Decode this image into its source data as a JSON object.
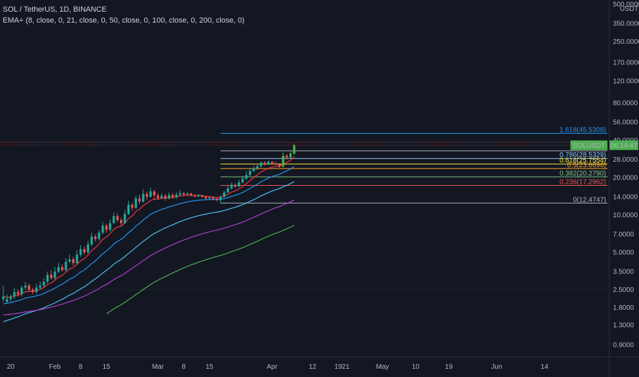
{
  "header": {
    "title": "SOL / TetherUS, 1D, BINANCE",
    "indicator": "EMA+ (8, close, 0, 21, close, 0, 50, close, 0, 100, close, 0, 200, close, 0)"
  },
  "colors": {
    "background": "#131722",
    "up": "#26a69a",
    "up_bright": "#4caf50",
    "down": "#ef5350",
    "ema8": "#f23645",
    "ema21": "#2196f3",
    "ema50": "#4fc3f7",
    "ema100": "#b040d0",
    "ema200": "#4caf50",
    "fib_1618": "#2196f3",
    "fib_1": "#b2b5be",
    "fib_0786": "#90caf9",
    "fib_0618": "#ffeb3b",
    "fib_05": "#ffa726",
    "fib_0382": "#81c784",
    "fib_0236": "#ef5350",
    "fib_0": "#b2b5be"
  },
  "chart_data": {
    "type": "candlestick",
    "scale": "log",
    "y_ticks": [
      "500.0000",
      "350.0000",
      "250.0000",
      "170.0000",
      "120.0000",
      "80.0000",
      "56.0000",
      "40.0000",
      "28.0000",
      "20.0000",
      "14.0000",
      "10.0000",
      "7.0000",
      "5.0000",
      "3.5000",
      "2.5000",
      "1.8000",
      "1.3000",
      "0.9000"
    ],
    "y_tick_values": [
      500,
      350,
      250,
      170,
      120,
      80,
      56,
      40,
      28,
      20,
      14,
      10,
      7,
      5,
      3.5,
      2.5,
      1.8,
      1.3,
      0.9
    ],
    "y_unit": "USDT",
    "x_ticks": [
      "20",
      "Feb",
      "8",
      "15",
      "Mar",
      "8",
      "15",
      "Apr",
      "12",
      "19",
      "21",
      "May",
      "10",
      "19",
      "Jun",
      "14"
    ],
    "x_tick_days": [
      -12,
      0,
      7,
      14,
      28,
      35,
      42,
      59,
      70,
      77,
      79,
      89,
      98,
      107,
      120,
      133
    ],
    "current_price": {
      "symbol": "SOLUSDT",
      "time": "06:14:47",
      "value": 36.5
    },
    "fib_levels": [
      {
        "ratio": 1.618,
        "value": 45.5308,
        "label": "1.618(45.5308)",
        "color_key": "fib_1618"
      },
      {
        "ratio": 1,
        "value": 32.9,
        "label": "1",
        "color_key": "fib_1"
      },
      {
        "ratio": 0.786,
        "value": 28.5329,
        "label": "0.786(28.5329)",
        "color_key": "fib_0786"
      },
      {
        "ratio": 0.618,
        "value": 25.7554,
        "label": "0.618(25.7554)",
        "color_key": "fib_0618"
      },
      {
        "ratio": 0.5,
        "value": 23.6696,
        "label": "0.5(23.6696)",
        "color_key": "fib_05"
      },
      {
        "ratio": 0.382,
        "value": 20.279,
        "label": "0.382(20.2790)",
        "color_key": "fib_0382"
      },
      {
        "ratio": 0.236,
        "value": 17.2962,
        "label": "0.236(17.2962)",
        "color_key": "fib_0236"
      },
      {
        "ratio": 0,
        "value": 12.4747,
        "label": "0(12.4747)",
        "color_key": "fib_0"
      }
    ],
    "fib_start_day": 45,
    "candles": [
      [
        2.1,
        2.2,
        2.7,
        2.0
      ],
      [
        2.0,
        2.1,
        2.3,
        1.95
      ],
      [
        2.1,
        2.2,
        2.3,
        2.0
      ],
      [
        2.2,
        2.4,
        2.6,
        2.1
      ],
      [
        2.4,
        2.3,
        2.5,
        2.2
      ],
      [
        2.3,
        2.6,
        2.7,
        2.2
      ],
      [
        2.6,
        2.7,
        2.9,
        2.5
      ],
      [
        2.7,
        2.5,
        2.8,
        2.4
      ],
      [
        2.5,
        2.4,
        2.6,
        2.3
      ],
      [
        2.4,
        2.6,
        2.8,
        2.3
      ],
      [
        2.6,
        2.7,
        2.9,
        2.5
      ],
      [
        2.7,
        2.9,
        3.1,
        2.6
      ],
      [
        2.9,
        3.3,
        3.5,
        2.8
      ],
      [
        3.3,
        3.1,
        3.6,
        3.0
      ],
      [
        3.1,
        3.5,
        3.8,
        3.0
      ],
      [
        3.5,
        3.8,
        4.1,
        3.4
      ],
      [
        3.8,
        3.6,
        4.0,
        3.5
      ],
      [
        3.6,
        4.2,
        4.5,
        3.5
      ],
      [
        4.2,
        4.4,
        4.8,
        4.1
      ],
      [
        4.4,
        4.1,
        4.6,
        3.9
      ],
      [
        4.1,
        4.8,
        5.2,
        4.0
      ],
      [
        4.8,
        5.3,
        5.7,
        4.6
      ],
      [
        5.3,
        5.0,
        5.6,
        4.8
      ],
      [
        5.0,
        5.8,
        6.2,
        4.9
      ],
      [
        5.8,
        6.7,
        7.2,
        5.6
      ],
      [
        6.7,
        6.4,
        7.0,
        6.1
      ],
      [
        6.4,
        7.2,
        7.6,
        6.2
      ],
      [
        7.2,
        8.2,
        8.8,
        7.0
      ],
      [
        8.2,
        7.6,
        8.5,
        7.2
      ],
      [
        7.6,
        8.6,
        9.2,
        7.4
      ],
      [
        8.6,
        9.8,
        10.5,
        8.5
      ],
      [
        9.8,
        9.1,
        10.3,
        8.8
      ],
      [
        9.1,
        8.6,
        9.5,
        8.2
      ],
      [
        8.6,
        10.2,
        11.0,
        8.5
      ],
      [
        10.2,
        12.1,
        13.0,
        10.0
      ],
      [
        12.1,
        11.4,
        12.6,
        10.8
      ],
      [
        11.4,
        13.6,
        14.3,
        11.2
      ],
      [
        13.6,
        12.8,
        14.6,
        12.2
      ],
      [
        12.8,
        14.8,
        16.2,
        12.6
      ],
      [
        14.8,
        14.0,
        15.4,
        13.2
      ],
      [
        14.0,
        15.5,
        16.5,
        13.8
      ],
      [
        15.5,
        14.4,
        16.0,
        13.2
      ],
      [
        14.4,
        13.7,
        15.0,
        13.2
      ],
      [
        13.7,
        14.3,
        15.0,
        13.4
      ],
      [
        14.3,
        13.6,
        14.8,
        13.0
      ],
      [
        13.6,
        14.5,
        15.2,
        13.3
      ],
      [
        14.5,
        13.9,
        15.1,
        13.5
      ],
      [
        13.9,
        14.6,
        15.3,
        13.6
      ],
      [
        14.6,
        15.0,
        15.8,
        14.2
      ],
      [
        15.0,
        14.6,
        15.4,
        14.2
      ],
      [
        14.6,
        14.9,
        15.3,
        14.3
      ],
      [
        14.9,
        14.4,
        15.1,
        14.1
      ],
      [
        14.4,
        14.1,
        14.7,
        13.9
      ],
      [
        14.1,
        14.4,
        14.8,
        13.9
      ],
      [
        14.4,
        14.0,
        14.6,
        13.7
      ],
      [
        14.0,
        13.6,
        14.2,
        13.3
      ],
      [
        13.6,
        13.9,
        14.2,
        13.4
      ],
      [
        13.9,
        13.5,
        14.0,
        13.1
      ],
      [
        13.5,
        13.2,
        13.7,
        12.9
      ],
      [
        13.2,
        14.0,
        14.5,
        12.5
      ],
      [
        14.0,
        15.2,
        15.7,
        13.8
      ],
      [
        15.2,
        16.4,
        17.3,
        15.0
      ],
      [
        16.4,
        17.5,
        18.3,
        16.0
      ],
      [
        17.5,
        17.0,
        18.0,
        16.5
      ],
      [
        17.0,
        18.3,
        19.3,
        16.8
      ],
      [
        18.3,
        19.6,
        20.7,
        18.0
      ],
      [
        19.6,
        21.0,
        22.5,
        19.2
      ],
      [
        21.0,
        22.6,
        24.0,
        20.5
      ],
      [
        22.6,
        23.8,
        25.0,
        22.1
      ],
      [
        23.8,
        24.8,
        25.8,
        23.0
      ],
      [
        24.8,
        26.4,
        27.0,
        24.0
      ],
      [
        26.4,
        25.6,
        27.2,
        25.0
      ],
      [
        25.6,
        26.8,
        27.4,
        25.2
      ],
      [
        26.8,
        26.1,
        27.2,
        25.5
      ],
      [
        26.1,
        25.6,
        26.8,
        25.0
      ],
      [
        25.6,
        24.6,
        26.0,
        24.0
      ],
      [
        24.6,
        30.0,
        32.0,
        24.0
      ],
      [
        30.0,
        29.1,
        31.0,
        28.0
      ],
      [
        29.1,
        31.2,
        32.6,
        28.8
      ],
      [
        31.2,
        36.5,
        37.6,
        30.5
      ]
    ]
  }
}
